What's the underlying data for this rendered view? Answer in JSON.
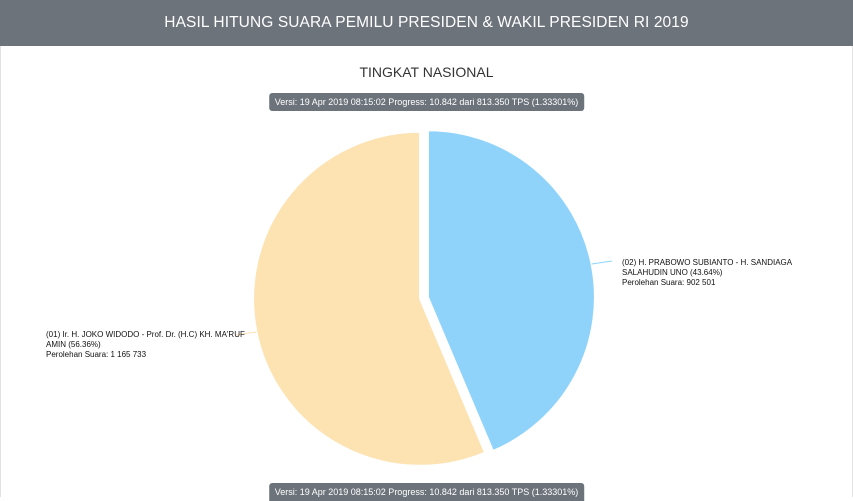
{
  "header": {
    "title": "HASIL HITUNG SUARA PEMILU PRESIDEN & WAKIL PRESIDEN RI 2019"
  },
  "version_badge": "Versi: 19 Apr 2019 08:15:02 Progress: 10.842 dari 813.350 TPS (1.33301%)",
  "chart_data": {
    "type": "pie",
    "title": "TINGKAT NASIONAL",
    "slices": [
      {
        "label": "(02) H. PRABOWO SUBIANTO - H. SANDIAGA SALAHUDIN UNO (43.64%)",
        "votes_label": "Perolehan Suara: 902 501",
        "value": 902501,
        "percent": 43.64,
        "color": "#8fd3fb"
      },
      {
        "label": "(01) Ir. H. JOKO WIDODO - Prof. Dr. (H.C) KH. MA'RUF AMIN (56.36%)",
        "votes_label": "Perolehan Suara: 1 165 733",
        "value": 1165733,
        "percent": 56.36,
        "color": "#fde2b2"
      }
    ]
  }
}
